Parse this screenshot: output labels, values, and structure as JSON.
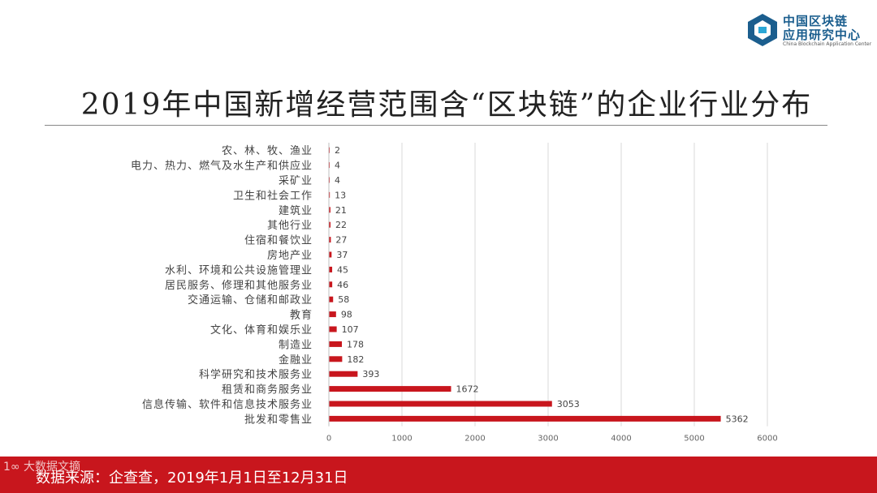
{
  "logo": {
    "cn_line1": "中国区块链",
    "cn_line2": "应用研究中心",
    "en": "China Blockchain Application Center",
    "color": "#1b5e8e"
  },
  "footer": {
    "source": "数据来源：企查查，2019年1月1日至12月31日",
    "watermark": "1∞ 大数据文摘",
    "color": "#c8161d"
  },
  "chart_data": {
    "type": "bar",
    "orientation": "horizontal",
    "title": "2019年中国新增经营范围含“区块链”的企业行业分布",
    "categories": [
      "农、林、牧、渔业",
      "电力、热力、燃气及水生产和供应业",
      "采矿业",
      "卫生和社会工作",
      "建筑业",
      "其他行业",
      "住宿和餐饮业",
      "房地产业",
      "水利、环境和公共设施管理业",
      "居民服务、修理和其他服务业",
      "交通运输、仓储和邮政业",
      "教育",
      "文化、体育和娱乐业",
      "制造业",
      "金融业",
      "科学研究和技术服务业",
      "租赁和商务服务业",
      "信息传输、软件和信息技术服务业",
      "批发和零售业"
    ],
    "values": [
      2,
      4,
      4,
      13,
      21,
      22,
      27,
      37,
      45,
      46,
      58,
      98,
      107,
      178,
      182,
      393,
      1672,
      3053,
      5362
    ],
    "xlim": [
      0,
      6000
    ],
    "xticks": [
      0,
      1000,
      2000,
      3000,
      4000,
      5000,
      6000
    ],
    "grid": "vertical",
    "legend": "none",
    "bar_color": "#c8161d"
  }
}
